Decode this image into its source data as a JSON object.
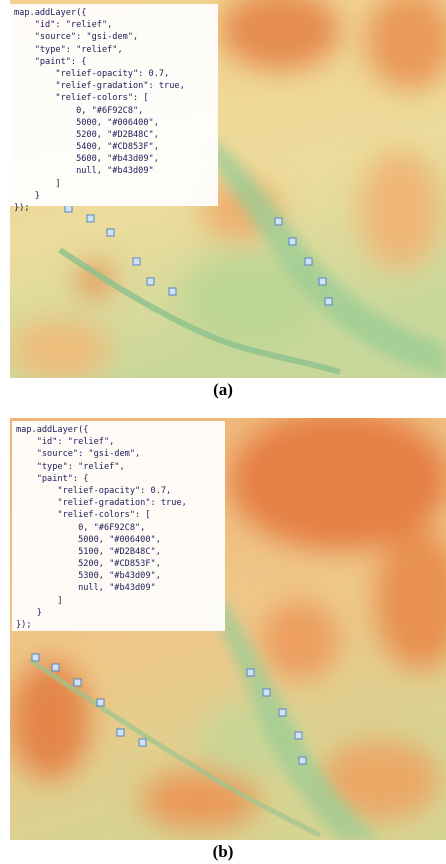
{
  "panels": [
    {
      "code_lines": [
        "map.addLayer({",
        "    \"id\": \"relief\",",
        "    \"source\": \"gsi-dem\",",
        "    \"type\": \"relief\",",
        "    \"paint\": {",
        "        \"relief-opacity\": 0.7,",
        "        \"relief-gradation\": true,",
        "        \"relief-colors\": [",
        "            0, \"#6F92C8\",",
        "            5000, \"#006400\",",
        "            5200, \"#D2B48C\",",
        "            5400, \"#CD853F\",",
        "            5600, \"#b43d09\",",
        "            null, \"#b43d09\"",
        "        ]",
        "    }",
        "});"
      ],
      "caption": "(a)"
    },
    {
      "code_lines": [
        "map.addLayer({",
        "    \"id\": \"relief\",",
        "    \"source\": \"gsi-dem\",",
        "    \"type\": \"relief\",",
        "    \"paint\": {",
        "        \"relief-opacity\": 0.7,",
        "        \"relief-gradation\": true,",
        "        \"relief-colors\": [",
        "            0, \"#6F92C8\",",
        "            5000, \"#006400\",",
        "            5100, \"#D2B48C\",",
        "            5200, \"#CD853F\",",
        "            5300, \"#b43d09\",",
        "            null, \"#b43d09\"",
        "        ]",
        "    }",
        "});"
      ],
      "caption": "(b)"
    }
  ]
}
